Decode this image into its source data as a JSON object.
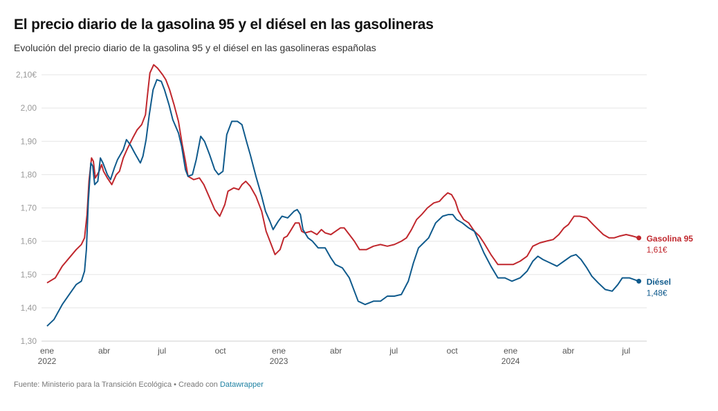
{
  "header": {
    "title": "El precio diario de la gasolina 95 y el diésel en las gasolineras",
    "subtitle": "Evolución del precio diario de la gasolina 95 y el diésel en las gasolineras españolas"
  },
  "footer": {
    "source": "Fuente: Ministerio para la Transición Ecológica • Creado con ",
    "credit": "Datawrapper"
  },
  "chart_data": {
    "type": "line",
    "title": "El precio diario de la gasolina 95 y el diésel en las gasolineras",
    "subtitle": "Evolución del precio diario de la gasolina 95 y el diésel en las gasolineras españolas",
    "xlabel": "",
    "ylabel": "",
    "x_unit": "days since 2022-01-01",
    "xlim": [
      0,
      935
    ],
    "ylim": [
      1.3,
      2.1
    ],
    "grid": true,
    "yticks": [
      {
        "value": 2.1,
        "label": "2,10€"
      },
      {
        "value": 2.0,
        "label": "2,00"
      },
      {
        "value": 1.9,
        "label": "1,90"
      },
      {
        "value": 1.8,
        "label": "1,80"
      },
      {
        "value": 1.7,
        "label": "1,70"
      },
      {
        "value": 1.6,
        "label": "1,60"
      },
      {
        "value": 1.5,
        "label": "1,50"
      },
      {
        "value": 1.4,
        "label": "1,40"
      },
      {
        "value": 1.3,
        "label": "1,30"
      }
    ],
    "xticks": [
      {
        "day": 0,
        "label": "ene",
        "sub": "2022"
      },
      {
        "day": 90,
        "label": "abr",
        "sub": ""
      },
      {
        "day": 181,
        "label": "jul",
        "sub": ""
      },
      {
        "day": 273,
        "label": "oct",
        "sub": ""
      },
      {
        "day": 365,
        "label": "ene",
        "sub": "2023"
      },
      {
        "day": 455,
        "label": "abr",
        "sub": ""
      },
      {
        "day": 546,
        "label": "jul",
        "sub": ""
      },
      {
        "day": 638,
        "label": "oct",
        "sub": ""
      },
      {
        "day": 730,
        "label": "ene",
        "sub": "2024"
      },
      {
        "day": 821,
        "label": "abr",
        "sub": ""
      },
      {
        "day": 912,
        "label": "jul",
        "sub": ""
      }
    ],
    "legend_placement": "right-end-labels",
    "series": [
      {
        "name": "Gasolina 95",
        "end_label": "1,61€",
        "color": "#c0272d",
        "points": [
          [
            0,
            1.475
          ],
          [
            13,
            1.49
          ],
          [
            24,
            1.525
          ],
          [
            35,
            1.55
          ],
          [
            46,
            1.575
          ],
          [
            54,
            1.59
          ],
          [
            59,
            1.61
          ],
          [
            63,
            1.68
          ],
          [
            66,
            1.78
          ],
          [
            70,
            1.85
          ],
          [
            73,
            1.84
          ],
          [
            76,
            1.79
          ],
          [
            82,
            1.81
          ],
          [
            86,
            1.83
          ],
          [
            89,
            1.81
          ],
          [
            95,
            1.79
          ],
          [
            102,
            1.77
          ],
          [
            109,
            1.8
          ],
          [
            114,
            1.81
          ],
          [
            120,
            1.85
          ],
          [
            127,
            1.88
          ],
          [
            135,
            1.91
          ],
          [
            142,
            1.935
          ],
          [
            149,
            1.95
          ],
          [
            155,
            1.98
          ],
          [
            158,
            2.035
          ],
          [
            162,
            2.105
          ],
          [
            168,
            2.13
          ],
          [
            174,
            2.12
          ],
          [
            182,
            2.1
          ],
          [
            187,
            2.085
          ],
          [
            193,
            2.055
          ],
          [
            200,
            2.01
          ],
          [
            207,
            1.96
          ],
          [
            213,
            1.89
          ],
          [
            218,
            1.84
          ],
          [
            222,
            1.795
          ],
          [
            231,
            1.785
          ],
          [
            240,
            1.79
          ],
          [
            247,
            1.77
          ],
          [
            255,
            1.735
          ],
          [
            264,
            1.695
          ],
          [
            272,
            1.675
          ],
          [
            280,
            1.71
          ],
          [
            285,
            1.75
          ],
          [
            294,
            1.76
          ],
          [
            302,
            1.755
          ],
          [
            307,
            1.77
          ],
          [
            313,
            1.78
          ],
          [
            320,
            1.765
          ],
          [
            329,
            1.735
          ],
          [
            338,
            1.69
          ],
          [
            345,
            1.63
          ],
          [
            353,
            1.59
          ],
          [
            359,
            1.56
          ],
          [
            367,
            1.575
          ],
          [
            373,
            1.61
          ],
          [
            378,
            1.615
          ],
          [
            383,
            1.63
          ],
          [
            391,
            1.655
          ],
          [
            397,
            1.655
          ],
          [
            401,
            1.63
          ],
          [
            406,
            1.625
          ],
          [
            416,
            1.63
          ],
          [
            425,
            1.62
          ],
          [
            432,
            1.635
          ],
          [
            438,
            1.625
          ],
          [
            447,
            1.62
          ],
          [
            462,
            1.64
          ],
          [
            468,
            1.64
          ],
          [
            476,
            1.62
          ],
          [
            484,
            1.6
          ],
          [
            492,
            1.575
          ],
          [
            503,
            1.575
          ],
          [
            514,
            1.585
          ],
          [
            525,
            1.59
          ],
          [
            536,
            1.585
          ],
          [
            547,
            1.59
          ],
          [
            558,
            1.6
          ],
          [
            566,
            1.61
          ],
          [
            574,
            1.635
          ],
          [
            582,
            1.665
          ],
          [
            590,
            1.68
          ],
          [
            599,
            1.7
          ],
          [
            609,
            1.715
          ],
          [
            618,
            1.72
          ],
          [
            625,
            1.735
          ],
          [
            631,
            1.745
          ],
          [
            637,
            1.74
          ],
          [
            643,
            1.72
          ],
          [
            648,
            1.69
          ],
          [
            656,
            1.665
          ],
          [
            664,
            1.655
          ],
          [
            673,
            1.63
          ],
          [
            681,
            1.615
          ],
          [
            688,
            1.595
          ],
          [
            699,
            1.56
          ],
          [
            710,
            1.53
          ],
          [
            721,
            1.53
          ],
          [
            734,
            1.53
          ],
          [
            745,
            1.54
          ],
          [
            756,
            1.555
          ],
          [
            765,
            1.585
          ],
          [
            776,
            1.595
          ],
          [
            786,
            1.6
          ],
          [
            797,
            1.605
          ],
          [
            806,
            1.62
          ],
          [
            814,
            1.64
          ],
          [
            821,
            1.65
          ],
          [
            830,
            1.675
          ],
          [
            839,
            1.675
          ],
          [
            850,
            1.67
          ],
          [
            860,
            1.65
          ],
          [
            868,
            1.635
          ],
          [
            876,
            1.62
          ],
          [
            885,
            1.61
          ],
          [
            893,
            1.61
          ],
          [
            901,
            1.615
          ],
          [
            912,
            1.62
          ],
          [
            923,
            1.615
          ],
          [
            932,
            1.61
          ]
        ]
      },
      {
        "name": "Diésel",
        "end_label": "1,48€",
        "color": "#0f5a8c",
        "points": [
          [
            0,
            1.345
          ],
          [
            11,
            1.365
          ],
          [
            24,
            1.41
          ],
          [
            35,
            1.44
          ],
          [
            46,
            1.47
          ],
          [
            54,
            1.48
          ],
          [
            59,
            1.51
          ],
          [
            62,
            1.575
          ],
          [
            65,
            1.72
          ],
          [
            69,
            1.835
          ],
          [
            72,
            1.825
          ],
          [
            75,
            1.77
          ],
          [
            80,
            1.78
          ],
          [
            84,
            1.85
          ],
          [
            88,
            1.835
          ],
          [
            95,
            1.8
          ],
          [
            100,
            1.785
          ],
          [
            106,
            1.82
          ],
          [
            111,
            1.845
          ],
          [
            120,
            1.875
          ],
          [
            125,
            1.905
          ],
          [
            131,
            1.89
          ],
          [
            138,
            1.865
          ],
          [
            147,
            1.835
          ],
          [
            151,
            1.855
          ],
          [
            156,
            1.905
          ],
          [
            161,
            1.98
          ],
          [
            167,
            2.055
          ],
          [
            173,
            2.085
          ],
          [
            180,
            2.08
          ],
          [
            185,
            2.055
          ],
          [
            192,
            2.01
          ],
          [
            198,
            1.965
          ],
          [
            207,
            1.925
          ],
          [
            212,
            1.885
          ],
          [
            218,
            1.815
          ],
          [
            222,
            1.795
          ],
          [
            229,
            1.8
          ],
          [
            235,
            1.845
          ],
          [
            242,
            1.915
          ],
          [
            248,
            1.9
          ],
          [
            256,
            1.86
          ],
          [
            264,
            1.815
          ],
          [
            270,
            1.8
          ],
          [
            277,
            1.81
          ],
          [
            283,
            1.92
          ],
          [
            291,
            1.96
          ],
          [
            300,
            1.96
          ],
          [
            307,
            1.95
          ],
          [
            314,
            1.9
          ],
          [
            320,
            1.86
          ],
          [
            329,
            1.795
          ],
          [
            338,
            1.735
          ],
          [
            344,
            1.69
          ],
          [
            351,
            1.66
          ],
          [
            356,
            1.635
          ],
          [
            364,
            1.66
          ],
          [
            370,
            1.675
          ],
          [
            379,
            1.67
          ],
          [
            389,
            1.69
          ],
          [
            394,
            1.695
          ],
          [
            399,
            1.68
          ],
          [
            403,
            1.635
          ],
          [
            411,
            1.61
          ],
          [
            418,
            1.6
          ],
          [
            427,
            1.58
          ],
          [
            438,
            1.58
          ],
          [
            447,
            1.55
          ],
          [
            454,
            1.53
          ],
          [
            465,
            1.52
          ],
          [
            476,
            1.49
          ],
          [
            484,
            1.45
          ],
          [
            490,
            1.42
          ],
          [
            501,
            1.41
          ],
          [
            514,
            1.42
          ],
          [
            525,
            1.42
          ],
          [
            536,
            1.435
          ],
          [
            547,
            1.435
          ],
          [
            558,
            1.44
          ],
          [
            569,
            1.48
          ],
          [
            577,
            1.535
          ],
          [
            585,
            1.58
          ],
          [
            593,
            1.595
          ],
          [
            601,
            1.61
          ],
          [
            612,
            1.655
          ],
          [
            623,
            1.675
          ],
          [
            632,
            1.68
          ],
          [
            639,
            1.68
          ],
          [
            645,
            1.665
          ],
          [
            654,
            1.655
          ],
          [
            664,
            1.64
          ],
          [
            673,
            1.63
          ],
          [
            680,
            1.6
          ],
          [
            688,
            1.565
          ],
          [
            699,
            1.525
          ],
          [
            710,
            1.49
          ],
          [
            721,
            1.49
          ],
          [
            732,
            1.48
          ],
          [
            745,
            1.49
          ],
          [
            756,
            1.51
          ],
          [
            765,
            1.54
          ],
          [
            773,
            1.555
          ],
          [
            781,
            1.545
          ],
          [
            792,
            1.535
          ],
          [
            803,
            1.525
          ],
          [
            814,
            1.54
          ],
          [
            825,
            1.555
          ],
          [
            833,
            1.56
          ],
          [
            841,
            1.545
          ],
          [
            850,
            1.52
          ],
          [
            858,
            1.495
          ],
          [
            868,
            1.475
          ],
          [
            879,
            1.455
          ],
          [
            890,
            1.45
          ],
          [
            899,
            1.47
          ],
          [
            906,
            1.49
          ],
          [
            917,
            1.49
          ],
          [
            932,
            1.48
          ]
        ]
      }
    ]
  }
}
